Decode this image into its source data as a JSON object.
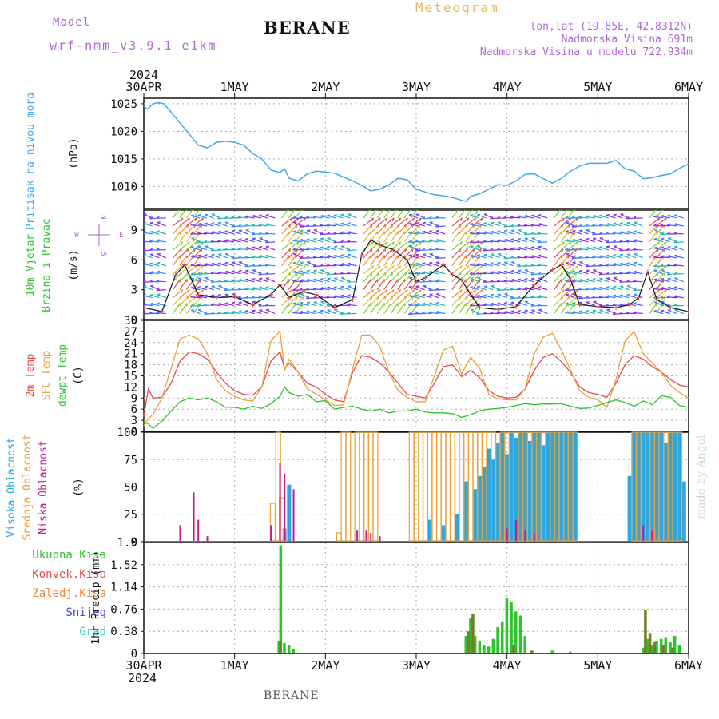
{
  "header": {
    "model_label": "Model",
    "model_name": "wrf-nmm_v3.9.1 e1km",
    "station": "BERANE",
    "title": "Meteogram",
    "coords": "lon,lat (19.85E, 42.8312N)",
    "elevation": "Nadmorska Visina 691m",
    "model_elevation": "Nadmorska Visina u modelu 722.934m"
  },
  "footer": {
    "station": "BERANE",
    "made_by": "made by Angel"
  },
  "time_axis": {
    "year": "2024",
    "labels": [
      "30APR",
      "1MAY",
      "2MAY",
      "3MAY",
      "4MAY",
      "5MAY",
      "6MAY"
    ]
  },
  "colors": {
    "pressure": "#3fa9e6",
    "temp2m": "#e84a4a",
    "sfc_temp": "#e8a23a",
    "dewpoint": "#2ec42e",
    "high_cloud": "#2ea6e0",
    "mid_cloud": "#e8a23a",
    "low_cloud": "#c21a9a",
    "total_precip": "#2ec42e",
    "conv_precip": "#e84a4a",
    "strat_precip": "#f0883a",
    "snow": "#4a4ae0",
    "hail": "#2ecccc"
  },
  "chart_data": [
    {
      "type": "line",
      "ylabel": [
        "Pritisak na nivou mora",
        "(hPa)"
      ],
      "ylim": [
        1006,
        1026
      ],
      "yticks": [
        1010,
        1015,
        1020,
        1025
      ],
      "series": [
        {
          "name": "Pritisak na nivou mora",
          "x_days": [
            0,
            0.04,
            0.1,
            0.16,
            0.22,
            0.3,
            0.4,
            0.5,
            0.6,
            0.7,
            0.8,
            0.9,
            1.0,
            1.1,
            1.2,
            1.3,
            1.4,
            1.5,
            1.55,
            1.6,
            1.7,
            1.8,
            1.9,
            2.0,
            2.1,
            2.2,
            2.3,
            2.4,
            2.5,
            2.6,
            2.7,
            2.8,
            2.9,
            3.0,
            3.1,
            3.2,
            3.3,
            3.4,
            3.5,
            3.55,
            3.6,
            3.7,
            3.8,
            3.9,
            4.0,
            4.1,
            4.2,
            4.3,
            4.4,
            4.5,
            4.6,
            4.7,
            4.8,
            4.9,
            5.0,
            5.1,
            5.2,
            5.3,
            5.4,
            5.5,
            5.6,
            5.7,
            5.8,
            5.9,
            6.0
          ],
          "values": [
            1024.5,
            1024,
            1025,
            1025.2,
            1025,
            1023.5,
            1021.5,
            1019.5,
            1017.5,
            1017,
            1018,
            1018.2,
            1018,
            1017.5,
            1016,
            1015,
            1013,
            1012.5,
            1013.2,
            1011.5,
            1011,
            1012.3,
            1012.8,
            1012.6,
            1012.4,
            1011.7,
            1011,
            1010.2,
            1009.2,
            1009.5,
            1010.3,
            1011.5,
            1011.2,
            1009.5,
            1009,
            1008.5,
            1008.3,
            1008,
            1007.5,
            1007.3,
            1008.2,
            1008.7,
            1009.5,
            1010.3,
            1010.2,
            1011,
            1012.2,
            1012.3,
            1011.4,
            1010.6,
            1011.5,
            1012.8,
            1013.7,
            1014.2,
            1014.2,
            1014.2,
            1014.7,
            1013.2,
            1012.8,
            1011.4,
            1011.6,
            1012,
            1012.3,
            1013.3,
            1014.1
          ]
        }
      ]
    },
    {
      "type": "scatter",
      "ylabel": [
        "10m Vjetar",
        "Brzina i Pravac",
        "(m/s)"
      ],
      "ylim": [
        0,
        11
      ],
      "yticks": [
        0,
        3,
        6,
        9
      ],
      "compass": {
        "n": "N",
        "s": "S",
        "w": "W",
        "e": "E"
      },
      "barb_levels_ms": [
        0.6,
        1.4,
        2.2,
        3.0,
        3.8,
        4.6,
        5.4,
        6.2,
        7.0,
        7.8,
        8.6,
        9.4,
        10.2
      ],
      "series": [
        {
          "name": "10m Vjetar",
          "x_days": [
            0,
            0.2,
            0.35,
            0.45,
            0.6,
            0.8,
            1.0,
            1.2,
            1.4,
            1.5,
            1.6,
            1.75,
            1.9,
            2.1,
            2.3,
            2.4,
            2.5,
            2.6,
            2.75,
            2.9,
            3.0,
            3.1,
            3.3,
            3.4,
            3.5,
            3.6,
            3.7,
            3.9,
            4.1,
            4.3,
            4.5,
            4.6,
            4.7,
            4.8,
            5.0,
            5.2,
            5.35,
            5.45,
            5.55,
            5.65,
            5.8,
            6.0
          ],
          "values": [
            1.2,
            0.8,
            4.5,
            5.5,
            2.5,
            2.2,
            2.3,
            1.5,
            2.5,
            3.5,
            2.2,
            2.8,
            2.5,
            1.2,
            2.0,
            6.5,
            8.0,
            7.5,
            7.0,
            6.0,
            3.8,
            4.2,
            5.5,
            4.5,
            4.0,
            2.5,
            1.2,
            1.0,
            1.3,
            3.5,
            5.0,
            5.5,
            4.0,
            1.5,
            1.3,
            1.2,
            1.5,
            2.2,
            4.8,
            2.0,
            1.2,
            0.8
          ]
        }
      ]
    },
    {
      "type": "line",
      "ylabel": [
        "2m Temp",
        "SFC Temp",
        "dewpt Temp",
        "(C)"
      ],
      "ylim": [
        0,
        30
      ],
      "yticks": [
        0,
        3,
        6,
        9,
        12,
        15,
        18,
        21,
        24,
        27,
        30
      ],
      "x_days": [
        0,
        0.05,
        0.1,
        0.2,
        0.3,
        0.4,
        0.5,
        0.6,
        0.7,
        0.8,
        0.9,
        1.0,
        1.1,
        1.2,
        1.3,
        1.4,
        1.5,
        1.55,
        1.6,
        1.7,
        1.8,
        1.9,
        2.0,
        2.1,
        2.2,
        2.3,
        2.4,
        2.5,
        2.6,
        2.7,
        2.8,
        2.9,
        3.0,
        3.1,
        3.2,
        3.3,
        3.4,
        3.5,
        3.6,
        3.7,
        3.8,
        3.9,
        4.0,
        4.1,
        4.2,
        4.3,
        4.4,
        4.5,
        4.6,
        4.7,
        4.8,
        4.9,
        5.0,
        5.1,
        5.2,
        5.3,
        5.4,
        5.5,
        5.6,
        5.7,
        5.8,
        5.9,
        6.0
      ],
      "series": [
        {
          "name": "2m Temp",
          "values": [
            4,
            11.5,
            9,
            9.2,
            13,
            19,
            21.5,
            21,
            19.5,
            16,
            13,
            11,
            10,
            9.8,
            12,
            19,
            21.5,
            17,
            18.5,
            16,
            13,
            12,
            10,
            8.5,
            8,
            16,
            20.5,
            20,
            18.5,
            16,
            13,
            10,
            9.5,
            9,
            13,
            17.5,
            18,
            14.8,
            16.5,
            14.5,
            11,
            9.5,
            9,
            9.2,
            11.5,
            16.5,
            20,
            21,
            18.8,
            16,
            12,
            10.5,
            10,
            9.2,
            13,
            18,
            20.5,
            19.5,
            17.5,
            16,
            14,
            12.5,
            12
          ]
        },
        {
          "name": "SFC Temp",
          "values": [
            1.5,
            3.5,
            4.5,
            9,
            17,
            25,
            26,
            25,
            21,
            14,
            11,
            9.5,
            8.5,
            8.2,
            12,
            24.5,
            27,
            16.5,
            19.5,
            16,
            11.5,
            10,
            8.5,
            7,
            7.2,
            17,
            26,
            26,
            23,
            16,
            11,
            9.2,
            8,
            8,
            15,
            22,
            23,
            15.5,
            20,
            17,
            10,
            8.8,
            8.5,
            8.5,
            11.5,
            21,
            25.5,
            26.5,
            22,
            16.5,
            11,
            9.2,
            8.5,
            6.5,
            14,
            24.5,
            27,
            21,
            18.5,
            16,
            12.5,
            10.5,
            9
          ]
        },
        {
          "name": "dewpt Temp",
          "values": [
            2.5,
            2,
            0.8,
            2.8,
            5.5,
            8,
            9,
            8.5,
            9,
            8,
            6.5,
            6.5,
            6,
            6.8,
            6.2,
            7.5,
            9.5,
            12,
            10.5,
            9.5,
            10,
            8,
            8.3,
            6,
            6.5,
            6.8,
            6,
            5.5,
            6,
            5,
            5.5,
            5.5,
            6,
            5.2,
            5,
            5,
            4.8,
            3.8,
            4.5,
            5.6,
            6,
            6.2,
            6.5,
            7,
            7.5,
            7.2,
            7.4,
            7.4,
            7.5,
            6.8,
            6.2,
            6.3,
            7,
            7.8,
            8.5,
            7.8,
            6.8,
            8.2,
            7.2,
            9.6,
            9.2,
            7,
            6.5
          ]
        }
      ]
    },
    {
      "type": "bar",
      "ylabel": [
        "Visoka Oblacnost",
        "Srednja Oblacnost",
        "Niska Oblacnost",
        "(%)"
      ],
      "ylim": [
        0,
        100
      ],
      "yticks": [
        0,
        25,
        50,
        75,
        100
      ],
      "series": [
        {
          "name": "Visoka Oblacnost",
          "x_days": [
            1.55,
            1.6,
            3.15,
            3.3,
            3.45,
            3.55,
            3.65,
            3.7,
            3.75,
            3.8,
            3.85,
            3.9,
            3.95,
            4.0,
            4.05,
            4.1,
            4.15,
            4.2,
            4.25,
            4.3,
            4.35,
            4.4,
            4.45,
            4.5,
            4.55,
            4.6,
            4.65,
            4.7,
            4.75,
            5.35,
            5.4,
            5.45,
            5.5,
            5.55,
            5.6,
            5.65,
            5.7,
            5.75,
            5.8,
            5.85,
            5.9,
            5.95
          ],
          "values": [
            12,
            52,
            20,
            15,
            25,
            55,
            48,
            60,
            68,
            85,
            75,
            90,
            100,
            80,
            100,
            95,
            100,
            100,
            92,
            100,
            100,
            88,
            100,
            100,
            100,
            100,
            100,
            100,
            100,
            60,
            100,
            100,
            100,
            100,
            100,
            100,
            100,
            90,
            100,
            100,
            100,
            55
          ]
        },
        {
          "name": "Srednja Oblacnost",
          "x_days": [
            1.42,
            1.48,
            1.52,
            1.56,
            2.15,
            2.2,
            2.25,
            2.35,
            2.4,
            2.45,
            2.5,
            2.55,
            2.95,
            3.0,
            3.05,
            3.1,
            3.15,
            3.2,
            3.25,
            3.3,
            3.35,
            3.4,
            3.45,
            3.5,
            3.55,
            3.6,
            3.65,
            3.7,
            3.75,
            3.8,
            3.85,
            3.9,
            3.95,
            4.0,
            4.05,
            4.1,
            4.15,
            4.2,
            4.25,
            4.3,
            4.35,
            4.4,
            4.45,
            4.5,
            4.55,
            4.6,
            4.65,
            4.7,
            4.75,
            5.4,
            5.45,
            5.5,
            5.55,
            5.6,
            5.65,
            5.7,
            5.75,
            5.8,
            5.85,
            5.9
          ],
          "values": [
            35,
            100,
            40,
            10,
            8,
            100,
            100,
            100,
            100,
            100,
            100,
            100,
            100,
            100,
            100,
            100,
            100,
            100,
            100,
            100,
            100,
            100,
            100,
            100,
            100,
            100,
            100,
            100,
            100,
            100,
            100,
            90,
            100,
            100,
            100,
            100,
            100,
            100,
            100,
            100,
            100,
            100,
            100,
            100,
            100,
            100,
            100,
            100,
            100,
            100,
            100,
            100,
            100,
            100,
            100,
            100,
            100,
            100,
            100,
            100
          ]
        },
        {
          "name": "Niska Oblacnost",
          "x_days": [
            0.4,
            0.55,
            0.6,
            0.7,
            1.4,
            1.5,
            1.55,
            1.65,
            2.35,
            2.45,
            2.5,
            2.6,
            4.0,
            4.1,
            4.2,
            4.3,
            5.5,
            5.6
          ],
          "values": [
            15,
            45,
            20,
            5,
            15,
            72,
            62,
            48,
            10,
            10,
            8,
            5,
            12,
            20,
            10,
            8,
            15,
            10
          ]
        }
      ]
    },
    {
      "type": "bar",
      "ylabel": [
        "Ukupna Kisa",
        "Konvek.Kisa",
        "Zaledj.Kisa",
        "Snijeg",
        "Grad",
        "1hr Precip (mm)"
      ],
      "ylim": [
        0,
        1.9
      ],
      "yticks": [
        0,
        0.38,
        0.76,
        1.14,
        1.52,
        1.9
      ],
      "series": [
        {
          "name": "Ukupna Kisa",
          "x_days": [
            1.49,
            1.51,
            1.55,
            1.6,
            1.65,
            3.55,
            3.6,
            3.65,
            3.7,
            3.75,
            3.8,
            3.85,
            3.9,
            3.95,
            4.0,
            4.05,
            4.1,
            4.15,
            4.2,
            4.5,
            4.7,
            5.5,
            5.55,
            5.6,
            5.65,
            5.7,
            5.75,
            5.8,
            5.85,
            5.9
          ],
          "values": [
            0.22,
            1.85,
            0.18,
            0.15,
            0.08,
            0.3,
            0.6,
            0.3,
            0.22,
            0.15,
            0.12,
            0.25,
            0.45,
            0.55,
            0.95,
            0.88,
            0.72,
            0.65,
            0.3,
            0.05,
            0.03,
            0.1,
            0.25,
            0.15,
            0.22,
            0.25,
            0.28,
            0.2,
            0.3,
            0.15
          ]
        },
        {
          "name": "Zaledj.Kisa",
          "x_days": [
            1.48,
            3.55,
            3.6,
            4.05,
            4.25,
            5.5,
            5.55,
            5.6,
            5.7,
            5.8
          ],
          "values": [
            0.22,
            0.38,
            0.68,
            0.15,
            0.05,
            0.75,
            0.35,
            0.2,
            0.15,
            0.1
          ]
        }
      ]
    }
  ]
}
